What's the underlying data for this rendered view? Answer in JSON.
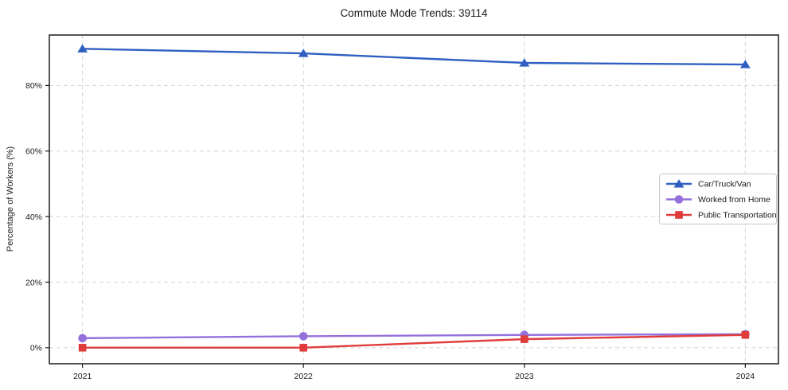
{
  "chart_data": {
    "type": "line",
    "title": "Commute Mode Trends: 39114",
    "xlabel": "",
    "ylabel": "Percentage of Workers (%)",
    "x": [
      2021,
      2022,
      2023,
      2024
    ],
    "x_tick_labels": [
      "2021",
      "2022",
      "2023",
      "2024"
    ],
    "series": [
      {
        "name": "Car/Truck/Van",
        "color": "#2f5fc2",
        "marker": "triangle",
        "values": [
          91.2,
          89.8,
          86.9,
          86.4
        ]
      },
      {
        "name": "Worked from Home",
        "color": "#9370db",
        "marker": "circle",
        "values": [
          2.9,
          3.5,
          3.9,
          4.1
        ]
      },
      {
        "name": "Public Transportation",
        "color": "#e03c3c",
        "marker": "square",
        "values": [
          0.0,
          0.0,
          2.6,
          3.9
        ]
      }
    ],
    "yticks": [
      0,
      20,
      40,
      60,
      80
    ],
    "ytick_labels": [
      "0%",
      "20%",
      "40%",
      "60%",
      "80%"
    ],
    "xlim": [
      2020.85,
      2024.15
    ],
    "ylim": [
      -4.9,
      95.4
    ],
    "grid": true,
    "grid_style": "dashed",
    "grid_color": "#d4d4d4",
    "axis_color": "#1a1a1a",
    "legend": {
      "position": "center-right"
    }
  }
}
